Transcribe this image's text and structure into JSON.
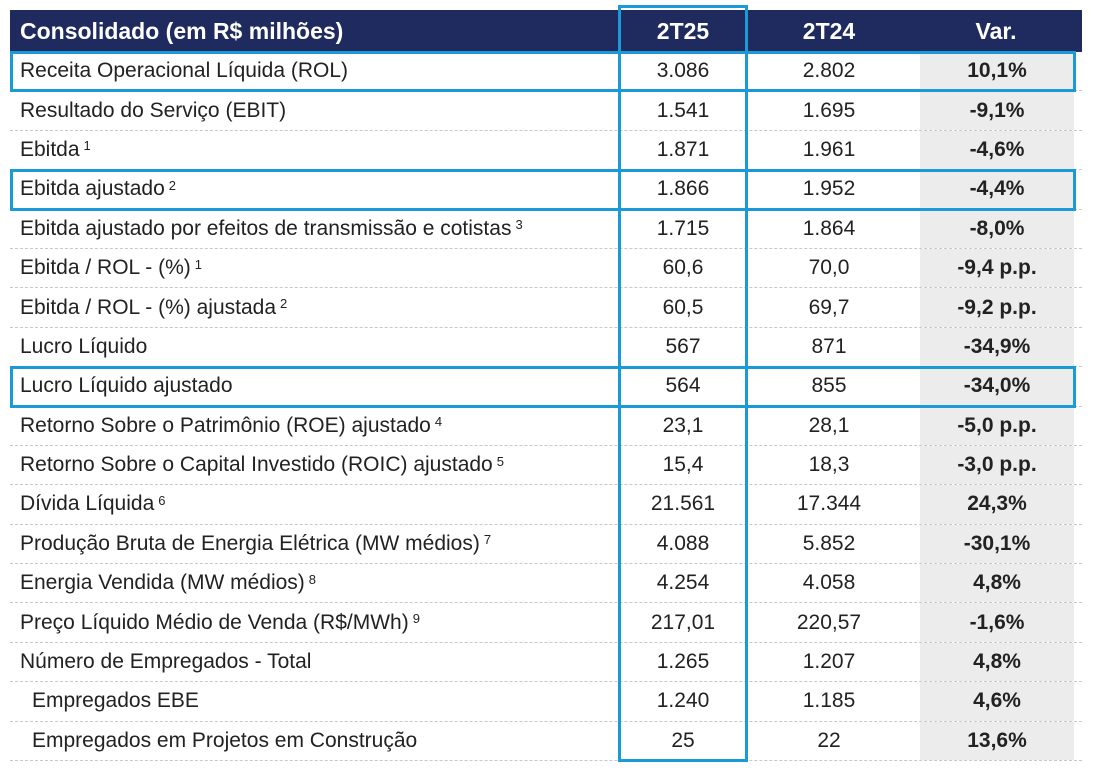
{
  "header": {
    "label": "Consolidado (em R$ milhões)",
    "col1": "2T25",
    "col2": "2T24",
    "col3": "Var."
  },
  "rows": [
    {
      "label": "Receita Operacional Líquida (ROL)",
      "sup": "",
      "v1": "3.086",
      "v2": "2.802",
      "var": "10,1%"
    },
    {
      "label": "Resultado do Serviço (EBIT)",
      "sup": "",
      "v1": "1.541",
      "v2": "1.695",
      "var": "-9,1%"
    },
    {
      "label": "Ebitda",
      "sup": "1",
      "v1": "1.871",
      "v2": "1.961",
      "var": "-4,6%"
    },
    {
      "label": "Ebitda ajustado",
      "sup": "2",
      "v1": "1.866",
      "v2": "1.952",
      "var": "-4,4%"
    },
    {
      "label": "Ebitda ajustado por efeitos de transmissão e cotistas",
      "sup": "3",
      "v1": "1.715",
      "v2": "1.864",
      "var": "-8,0%"
    },
    {
      "label": "Ebitda / ROL - (%)",
      "sup": "1",
      "v1": "60,6",
      "v2": "70,0",
      "var": "-9,4 p.p."
    },
    {
      "label": "Ebitda / ROL - (%) ajustada",
      "sup": "2",
      "v1": "60,5",
      "v2": "69,7",
      "var": "-9,2 p.p."
    },
    {
      "label": "Lucro Líquido",
      "sup": "",
      "v1": "567",
      "v2": "871",
      "var": "-34,9%"
    },
    {
      "label": "Lucro Líquido ajustado",
      "sup": "",
      "v1": "564",
      "v2": "855",
      "var": "-34,0%"
    },
    {
      "label": "Retorno Sobre o Patrimônio (ROE) ajustado",
      "sup": "4",
      "v1": "23,1",
      "v2": "28,1",
      "var": "-5,0 p.p."
    },
    {
      "label": "Retorno Sobre o Capital Investido (ROIC) ajustado",
      "sup": "5",
      "v1": "15,4",
      "v2": "18,3",
      "var": "-3,0 p.p."
    },
    {
      "label": "Dívida Líquida",
      "sup": "6",
      "v1": "21.561",
      "v2": "17.344",
      "var": "24,3%"
    },
    {
      "label": "Produção Bruta de Energia Elétrica (MW médios)",
      "sup": "7",
      "v1": "4.088",
      "v2": "5.852",
      "var": "-30,1%"
    },
    {
      "label": "Energia Vendida (MW médios)",
      "sup": "8",
      "v1": "4.254",
      "v2": "4.058",
      "var": "4,8%"
    },
    {
      "label": "Preço Líquido Médio de Venda (R$/MWh)",
      "sup": "9",
      "v1": "217,01",
      "v2": "220,57",
      "var": "-1,6%"
    },
    {
      "label": "Número de Empregados - Total",
      "sup": "",
      "v1": "1.265",
      "v2": "1.207",
      "var": "4,8%"
    },
    {
      "label": "Empregados EBE",
      "sup": "",
      "v1": "1.240",
      "v2": "1.185",
      "var": "4,6%",
      "indent": true
    },
    {
      "label": "Empregados em Projetos em Construção",
      "sup": "",
      "v1": "25",
      "v2": "22",
      "var": "13,6%",
      "indent": true
    }
  ],
  "highlights": {
    "rows": [
      0,
      3,
      8
    ],
    "color": "#1a9ad6"
  },
  "colors": {
    "header_bg": "#1f2b5e",
    "highlight": "#1a9ad6",
    "var_bg": "#ececec"
  }
}
